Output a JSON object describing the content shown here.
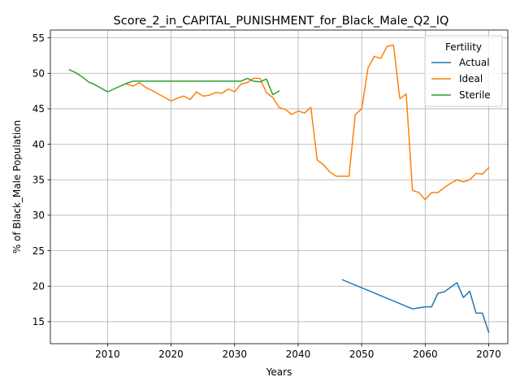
{
  "chart_data": {
    "type": "line",
    "title": "Score_2_in_CAPITAL_PUNISHMENT_for_Black_Male_Q2_IQ",
    "xlabel": "Years",
    "ylabel": "% of Black_Male Population",
    "xlim": [
      2001,
      2073
    ],
    "ylim": [
      11.9,
      56.1
    ],
    "xticks": [
      2010,
      2020,
      2030,
      2040,
      2050,
      2060,
      2070
    ],
    "yticks": [
      15,
      20,
      25,
      30,
      35,
      40,
      45,
      50,
      55
    ],
    "grid": true,
    "legend": {
      "title": "Fertility",
      "placement": "top-right"
    },
    "series": [
      {
        "name": "Actual",
        "color": "#1f77b4",
        "points": [
          [
            2047,
            20.9
          ],
          [
            2058,
            16.8
          ],
          [
            2060,
            17.1
          ],
          [
            2061,
            17.1
          ],
          [
            2062,
            19.0
          ],
          [
            2063,
            19.2
          ],
          [
            2065,
            20.5
          ],
          [
            2066,
            18.4
          ],
          [
            2067,
            19.3
          ],
          [
            2068,
            16.2
          ],
          [
            2069,
            16.2
          ],
          [
            2070,
            13.5
          ]
        ]
      },
      {
        "name": "Ideal",
        "color": "#ff7f0e",
        "points": [
          [
            2013,
            48.5
          ],
          [
            2014,
            48.2
          ],
          [
            2015,
            48.7
          ],
          [
            2016,
            48.0
          ],
          [
            2017,
            47.6
          ],
          [
            2018,
            47.1
          ],
          [
            2019,
            46.6
          ],
          [
            2020,
            46.1
          ],
          [
            2021,
            46.5
          ],
          [
            2022,
            46.8
          ],
          [
            2023,
            46.3
          ],
          [
            2024,
            47.4
          ],
          [
            2025,
            46.8
          ],
          [
            2026,
            46.9
          ],
          [
            2027,
            47.3
          ],
          [
            2028,
            47.2
          ],
          [
            2029,
            47.8
          ],
          [
            2030,
            47.4
          ],
          [
            2031,
            48.5
          ],
          [
            2032,
            48.7
          ],
          [
            2033,
            49.3
          ],
          [
            2034,
            49.3
          ],
          [
            2035,
            47.3
          ],
          [
            2036,
            46.6
          ],
          [
            2037,
            45.2
          ],
          [
            2038,
            44.9
          ],
          [
            2039,
            44.2
          ],
          [
            2040,
            44.7
          ],
          [
            2041,
            44.4
          ],
          [
            2042,
            45.2
          ],
          [
            2043,
            37.8
          ],
          [
            2044,
            37.1
          ],
          [
            2045,
            36.1
          ],
          [
            2046,
            35.5
          ],
          [
            2047,
            35.5
          ],
          [
            2048,
            35.5
          ],
          [
            2049,
            44.2
          ],
          [
            2050,
            45.0
          ],
          [
            2051,
            50.8
          ],
          [
            2052,
            52.4
          ],
          [
            2053,
            52.1
          ],
          [
            2054,
            53.8
          ],
          [
            2055,
            54.0
          ],
          [
            2056,
            46.4
          ],
          [
            2057,
            47.1
          ],
          [
            2058,
            33.5
          ],
          [
            2059,
            33.2
          ],
          [
            2060,
            32.2
          ],
          [
            2061,
            33.2
          ],
          [
            2062,
            33.2
          ],
          [
            2063,
            33.9
          ],
          [
            2064,
            34.5
          ],
          [
            2065,
            35.0
          ],
          [
            2066,
            34.7
          ],
          [
            2067,
            35.0
          ],
          [
            2068,
            35.9
          ],
          [
            2069,
            35.8
          ],
          [
            2070,
            36.7
          ]
        ]
      },
      {
        "name": "Sterile",
        "color": "#2ca02c",
        "points": [
          [
            2004,
            50.5
          ],
          [
            2005,
            50.1
          ],
          [
            2006,
            49.5
          ],
          [
            2007,
            48.8
          ],
          [
            2008,
            48.4
          ],
          [
            2009,
            47.9
          ],
          [
            2010,
            47.4
          ],
          [
            2011,
            47.8
          ],
          [
            2012,
            48.2
          ],
          [
            2013,
            48.6
          ],
          [
            2014,
            48.9
          ],
          [
            2015,
            48.9
          ],
          [
            2020,
            48.9
          ],
          [
            2025,
            48.9
          ],
          [
            2030,
            48.9
          ],
          [
            2031,
            48.9
          ],
          [
            2032,
            49.3
          ],
          [
            2033,
            48.9
          ],
          [
            2034,
            48.8
          ],
          [
            2035,
            49.2
          ],
          [
            2036,
            47.0
          ],
          [
            2037,
            47.5
          ]
        ]
      }
    ]
  }
}
